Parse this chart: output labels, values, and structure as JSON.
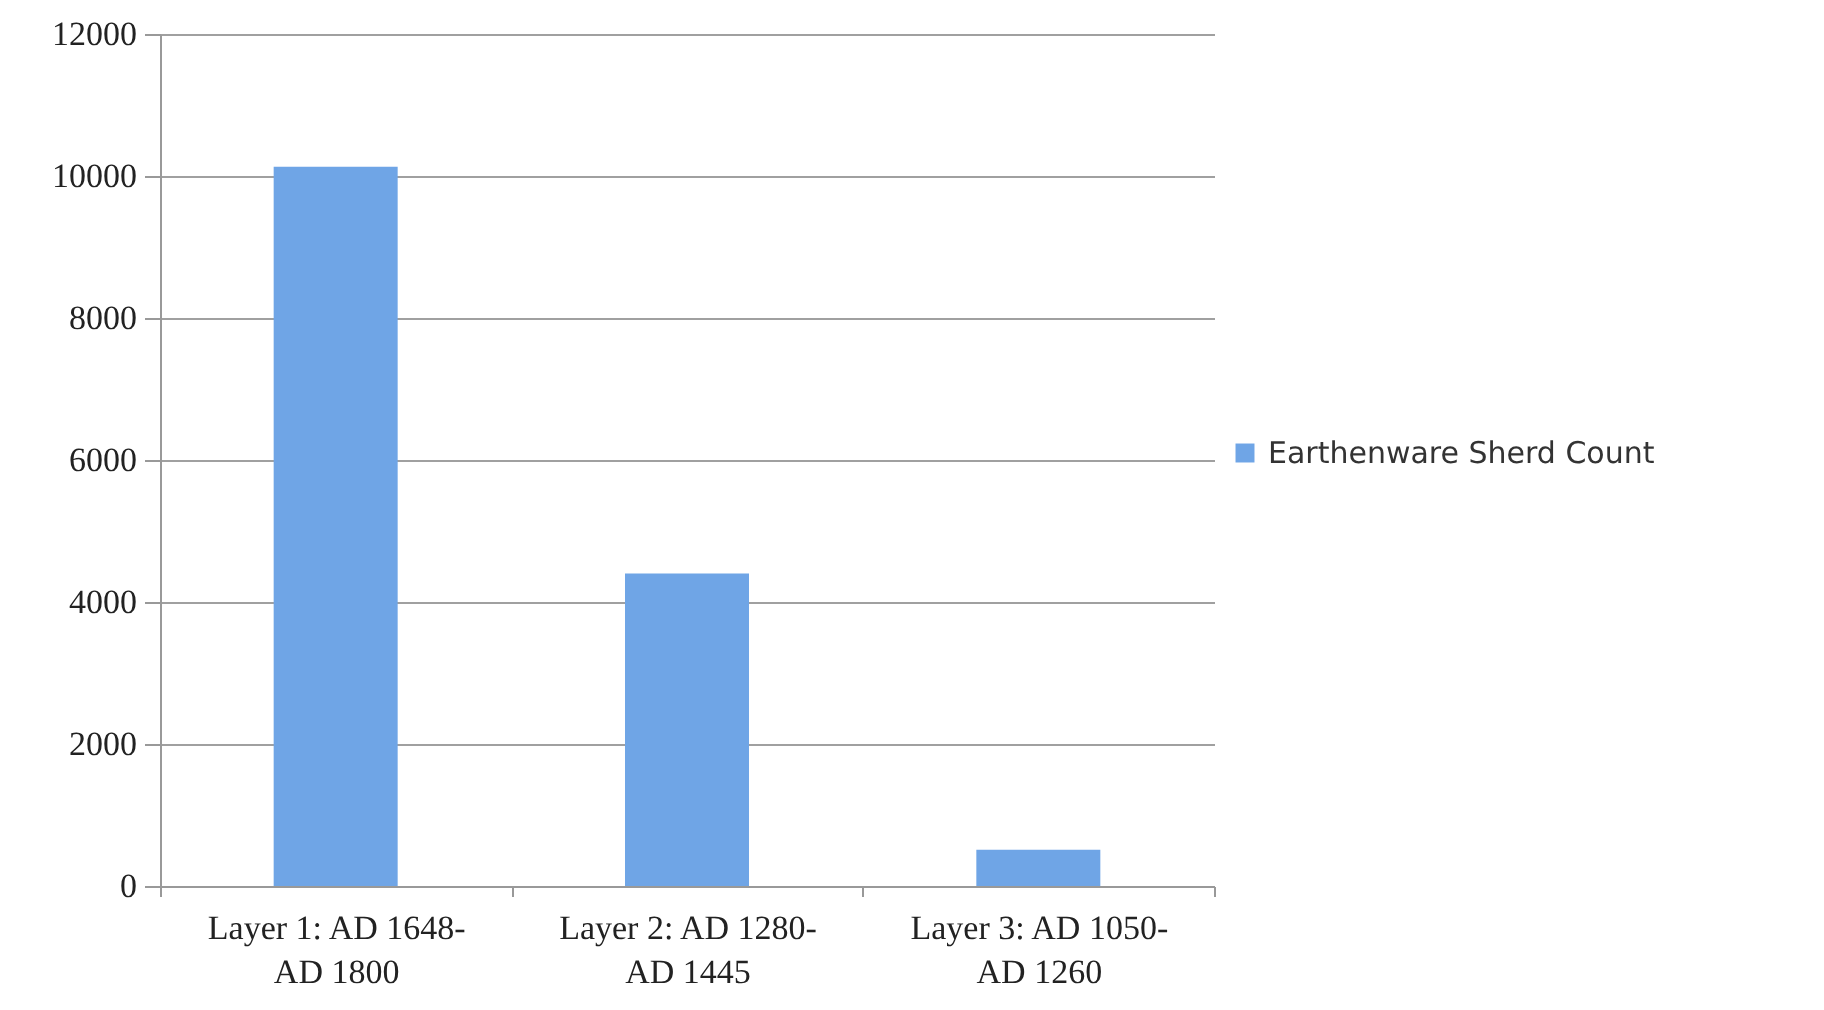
{
  "chart_data": {
    "type": "bar",
    "categories": [
      "Layer 1: AD 1648-AD 1800",
      "Layer 2: AD 1280-AD 1445",
      "Layer 3: AD 1050-AD 1260"
    ],
    "series": [
      {
        "name": "Earthenware Sherd Count",
        "color": "#6fa5e6",
        "values": [
          10130,
          4400,
          510
        ]
      }
    ],
    "ylim": [
      0,
      12000
    ],
    "yticks": [
      0,
      2000,
      4000,
      6000,
      8000,
      10000,
      12000
    ],
    "grid": "y",
    "legend": "right"
  }
}
